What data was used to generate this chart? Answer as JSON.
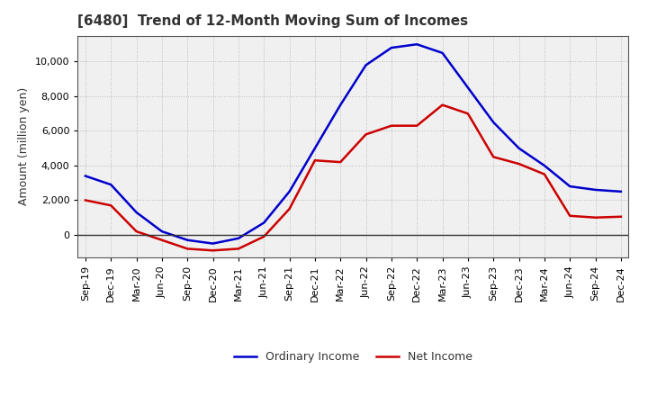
{
  "title": "[6480]  Trend of 12-Month Moving Sum of Incomes",
  "ylabel": "Amount (million yen)",
  "background_color": "#ffffff",
  "plot_bg_color": "#f0f0f0",
  "grid_color": "#aaaaaa",
  "x_labels": [
    "Sep-19",
    "Dec-19",
    "Mar-20",
    "Jun-20",
    "Sep-20",
    "Dec-20",
    "Mar-21",
    "Jun-21",
    "Sep-21",
    "Dec-21",
    "Mar-22",
    "Jun-22",
    "Sep-22",
    "Dec-22",
    "Mar-23",
    "Jun-23",
    "Sep-23",
    "Dec-23",
    "Mar-24",
    "Jun-24",
    "Sep-24",
    "Dec-24"
  ],
  "ordinary_income": [
    3400,
    2900,
    1300,
    200,
    -300,
    -500,
    -200,
    700,
    2500,
    5000,
    7500,
    9800,
    10800,
    11000,
    10500,
    8500,
    6500,
    5000,
    4000,
    2800,
    2600,
    2500
  ],
  "net_income": [
    2000,
    1700,
    200,
    -300,
    -800,
    -900,
    -800,
    -100,
    1500,
    4300,
    4200,
    5800,
    6300,
    6300,
    7500,
    7000,
    4500,
    4100,
    3500,
    1100,
    1000,
    1050
  ],
  "ordinary_color": "#0000cc",
  "net_color": "#cc0000",
  "zero_line_color": "#333333",
  "spine_color": "#555555",
  "ylim_min": -1300,
  "ylim_max": 11500,
  "yticks": [
    0,
    2000,
    4000,
    6000,
    8000,
    10000
  ],
  "line_width": 1.8,
  "title_fontsize": 11,
  "title_color": "#333333",
  "axis_fontsize": 9,
  "tick_fontsize": 8,
  "legend_fontsize": 9
}
